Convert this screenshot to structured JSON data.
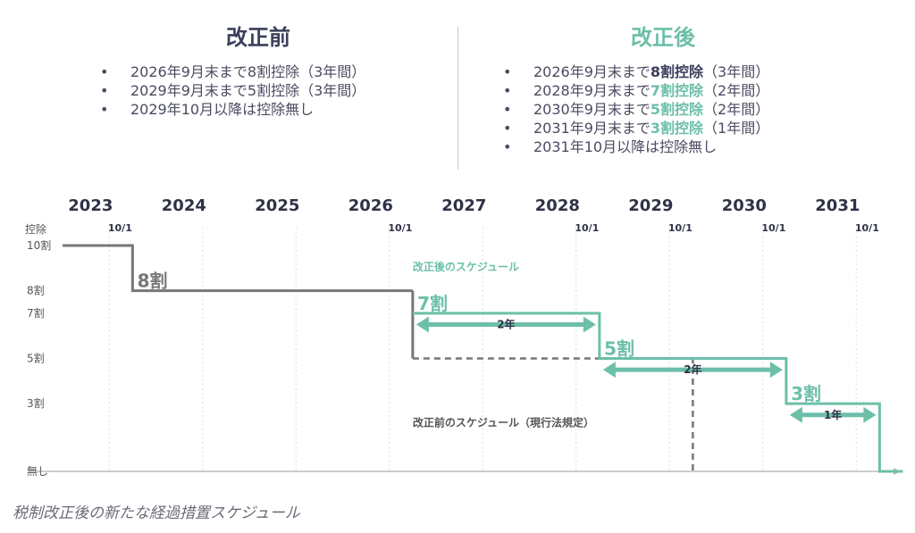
{
  "before": {
    "title": "改正前",
    "items": [
      {
        "pre": "2026年9月末まで8割控除（3年間）",
        "em": "",
        "post": ""
      },
      {
        "pre": "2029年9月末まで5割控除（3年間）",
        "em": "",
        "post": ""
      },
      {
        "pre": "2029年10月以降は控除無し",
        "em": "",
        "post": ""
      }
    ]
  },
  "after": {
    "title": "改正後",
    "items": [
      {
        "pre": "2026年9月末まで",
        "em": "8割控除",
        "post": "（3年間）",
        "em_color": "#3c3f5c"
      },
      {
        "pre": "2028年9月末まで",
        "em": "7割控除",
        "post": "（2年間）",
        "em_color": "#6cbfa8"
      },
      {
        "pre": "2030年9月末まで",
        "em": "5割控除",
        "post": "（2年間）",
        "em_color": "#6cbfa8"
      },
      {
        "pre": "2031年9月末まで",
        "em": "3割控除",
        "post": "（1年間）",
        "em_color": "#6cbfa8"
      },
      {
        "pre": "2031年10月以降は控除無し",
        "em": "",
        "post": ""
      }
    ]
  },
  "caption": "税制改正後の新たな経過措置スケジュール",
  "chart_data": {
    "type": "line",
    "x_label_years": [
      "2023",
      "2024",
      "2025",
      "2026",
      "2027",
      "2028",
      "2029",
      "2030",
      "2031"
    ],
    "x_range": [
      2023.0,
      2031.7
    ],
    "ylabel": "控除",
    "y_ticks": [
      {
        "value": 100,
        "label": "10割"
      },
      {
        "value": 80,
        "label": "8割"
      },
      {
        "value": 70,
        "label": "7割"
      },
      {
        "value": 50,
        "label": "5割"
      },
      {
        "value": 30,
        "label": "3割"
      },
      {
        "value": 0,
        "label": "無し"
      }
    ],
    "ylim": [
      0,
      100
    ],
    "date_markers": [
      {
        "x": 2023.75,
        "label": "10/1"
      },
      {
        "x": 2026.75,
        "label": "10/1"
      },
      {
        "x": 2028.75,
        "label": "10/1"
      },
      {
        "x": 2029.75,
        "label": "10/1"
      },
      {
        "x": 2030.75,
        "label": "10/1"
      },
      {
        "x": 2031.75,
        "label": "10/1"
      }
    ],
    "series": [
      {
        "name": "改正前のスケジュール（現行法規定）",
        "color": "#777777",
        "points": [
          [
            2023.0,
            100
          ],
          [
            2023.75,
            100
          ],
          [
            2023.75,
            80
          ],
          [
            2026.75,
            80
          ],
          [
            2026.75,
            50
          ],
          [
            2029.75,
            50
          ],
          [
            2029.75,
            0
          ]
        ]
      },
      {
        "name": "改正後のスケジュール",
        "color": "#6cbfa8",
        "points": [
          [
            2026.75,
            70
          ],
          [
            2028.75,
            70
          ],
          [
            2028.75,
            50
          ],
          [
            2030.75,
            50
          ],
          [
            2030.75,
            30
          ],
          [
            2031.75,
            30
          ],
          [
            2031.75,
            0
          ],
          [
            2032.0,
            0
          ]
        ]
      }
    ],
    "level_labels": [
      {
        "text": "8割",
        "x": 2023.8,
        "y": 80,
        "color": "#777777"
      },
      {
        "text": "7割",
        "x": 2026.8,
        "y": 70,
        "color": "#6cbfa8"
      },
      {
        "text": "5割",
        "x": 2028.8,
        "y": 50,
        "color": "#6cbfa8"
      },
      {
        "text": "3割",
        "x": 2030.8,
        "y": 30,
        "color": "#6cbfa8"
      }
    ],
    "spans": [
      {
        "from": 2026.75,
        "to": 2028.75,
        "y": 65,
        "label": "2年"
      },
      {
        "from": 2028.75,
        "to": 2030.75,
        "y": 45,
        "label": "2年"
      },
      {
        "from": 2030.75,
        "to": 2031.75,
        "y": 25,
        "label": "1年"
      }
    ],
    "annotations": [
      {
        "text": "改正後のスケジュール",
        "x": 2026.75,
        "y": 89,
        "color": "#6cbfa8"
      },
      {
        "text": "改正前のスケジュール（現行法規定）",
        "x": 2026.75,
        "y": 20,
        "color": "#555555"
      }
    ]
  }
}
